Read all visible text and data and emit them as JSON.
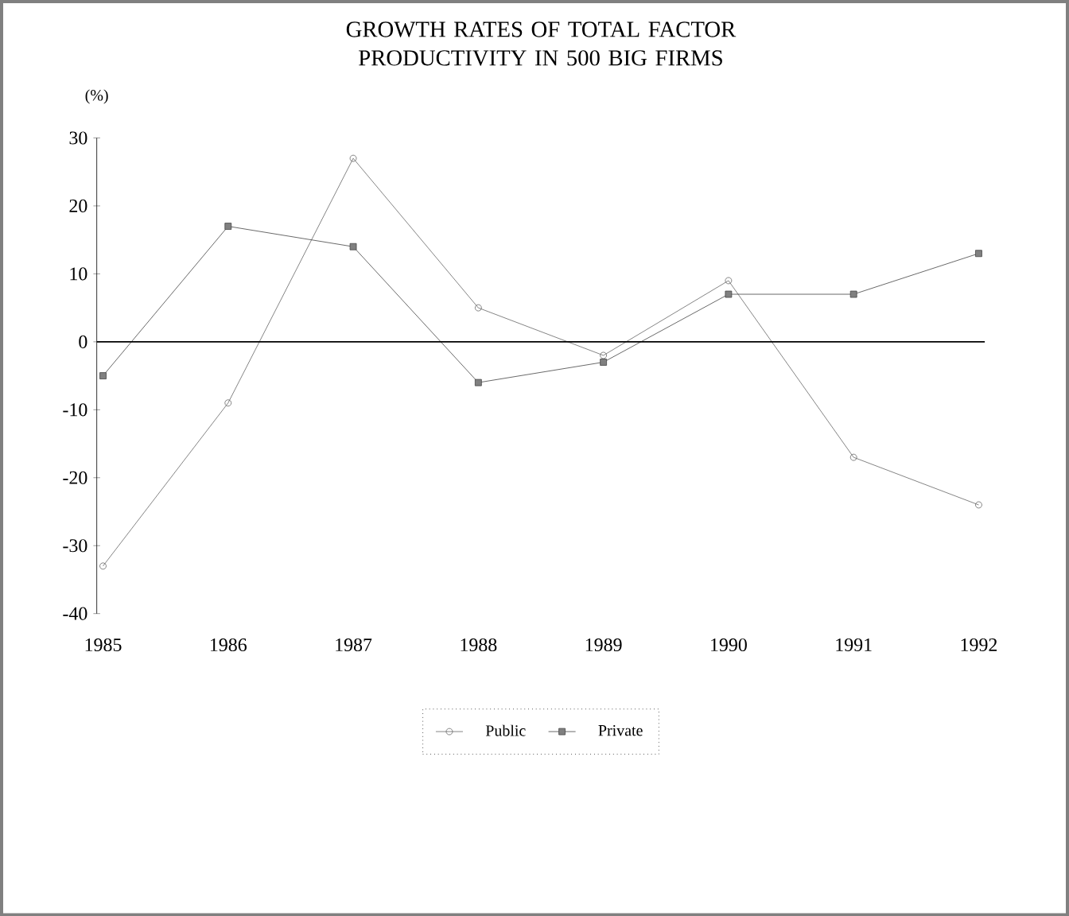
{
  "chart_data": {
    "type": "line",
    "title": "GROWTH RATES OF TOTAL FACTOR PRODUCTIVITY IN 500 BIG FIRMS",
    "ylabel": "(%)",
    "categories": [
      "1985",
      "1986",
      "1987",
      "1988",
      "1989",
      "1990",
      "1991",
      "1992"
    ],
    "series": [
      {
        "name": "Public",
        "color": "#666666",
        "marker": "circle",
        "values": [
          -33,
          -9,
          27,
          5,
          -2,
          9,
          -17,
          -24
        ]
      },
      {
        "name": "Private",
        "color": "#444444",
        "marker": "square",
        "values": [
          -5,
          17,
          14,
          -6,
          -3,
          7,
          7,
          13
        ]
      }
    ],
    "ylim": [
      -40,
      30
    ],
    "yticks": [
      -40,
      -30,
      -20,
      -10,
      0,
      10,
      20,
      30
    ],
    "ref_lines": [
      {
        "axis": "y",
        "value": 0,
        "color": "#000000"
      }
    ],
    "legend": "bottom",
    "grid": false
  }
}
